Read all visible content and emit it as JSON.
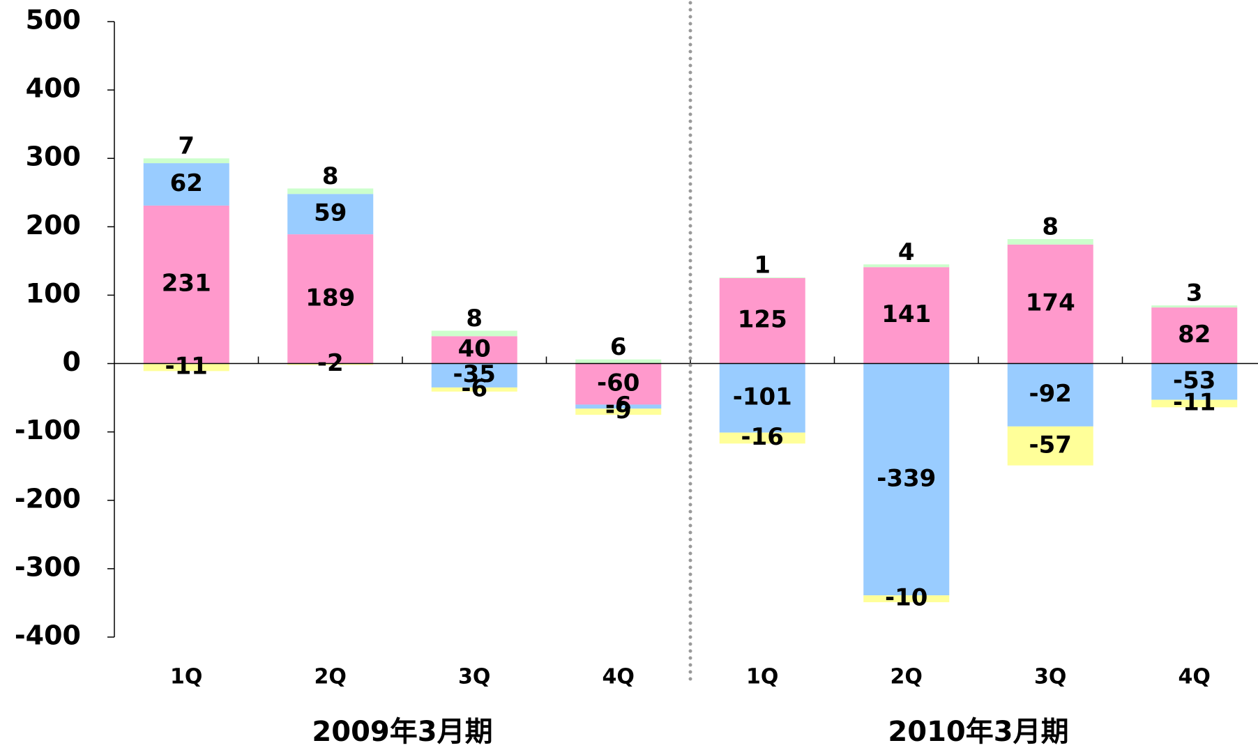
{
  "chart_data": {
    "type": "stacked_bar",
    "categories": [
      "1Q",
      "2Q",
      "3Q",
      "4Q",
      "1Q",
      "2Q",
      "3Q",
      "4Q"
    ],
    "groups": [
      "2009年3月期",
      "2010年3月期"
    ],
    "series": [
      {
        "color": "#ff99cc",
        "values": [
          231,
          189,
          40,
          -60,
          125,
          141,
          174,
          82
        ]
      },
      {
        "color": "#99ccff",
        "values": [
          62,
          59,
          -35,
          -6,
          -101,
          -339,
          -92,
          -53
        ]
      },
      {
        "color": "#ffff99",
        "values": [
          -11,
          -2,
          -6,
          -9,
          -16,
          -10,
          -57,
          -11
        ]
      },
      {
        "color": "#ccffcc",
        "values": [
          7,
          8,
          8,
          6,
          1,
          4,
          8,
          3
        ]
      }
    ],
    "ylim": [
      -400,
      500
    ],
    "yticks": [
      -400,
      -300,
      -200,
      -100,
      0,
      100,
      200,
      300,
      400,
      500
    ]
  }
}
